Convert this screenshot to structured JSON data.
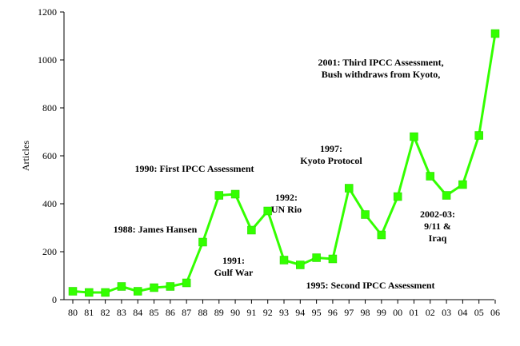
{
  "chart_data": {
    "type": "line",
    "ylabel": "Articles",
    "xlabel": "",
    "ylim": [
      0,
      1200
    ],
    "yticks": [
      0,
      200,
      400,
      600,
      800,
      1000,
      1200
    ],
    "grid": false,
    "line_color": "#33ff00",
    "marker_color": "#33ff00",
    "categories": [
      "80",
      "81",
      "82",
      "83",
      "84",
      "85",
      "86",
      "87",
      "88",
      "89",
      "90",
      "91",
      "92",
      "93",
      "94",
      "95",
      "96",
      "97",
      "98",
      "99",
      "00",
      "01",
      "02",
      "03",
      "04",
      "05",
      "06"
    ],
    "values": [
      35,
      30,
      30,
      55,
      35,
      50,
      55,
      70,
      240,
      435,
      440,
      290,
      370,
      165,
      145,
      175,
      170,
      465,
      355,
      270,
      430,
      680,
      515,
      435,
      480,
      685,
      1110
    ],
    "annotations": [
      {
        "index": 8,
        "lines": [
          "1988: James Hansen"
        ]
      },
      {
        "index": 10,
        "lines": [
          "1990: First IPCC Assessment"
        ]
      },
      {
        "index": 11,
        "lines": [
          "1991:",
          "Gulf War"
        ]
      },
      {
        "index": 12,
        "lines": [
          "1992:",
          "UN Rio"
        ]
      },
      {
        "index": 15,
        "lines": [
          "1995: Second IPCC Assessment"
        ]
      },
      {
        "index": 17,
        "lines": [
          "1997:",
          "Kyoto Protocol"
        ]
      },
      {
        "index": 23,
        "lines": [
          "2002-03:",
          "9/11 &",
          "Iraq"
        ]
      },
      {
        "index": 26,
        "lines": [
          "2001: Third IPCC Assessment,",
          "Bush withdraws from Kyoto,"
        ]
      }
    ]
  }
}
